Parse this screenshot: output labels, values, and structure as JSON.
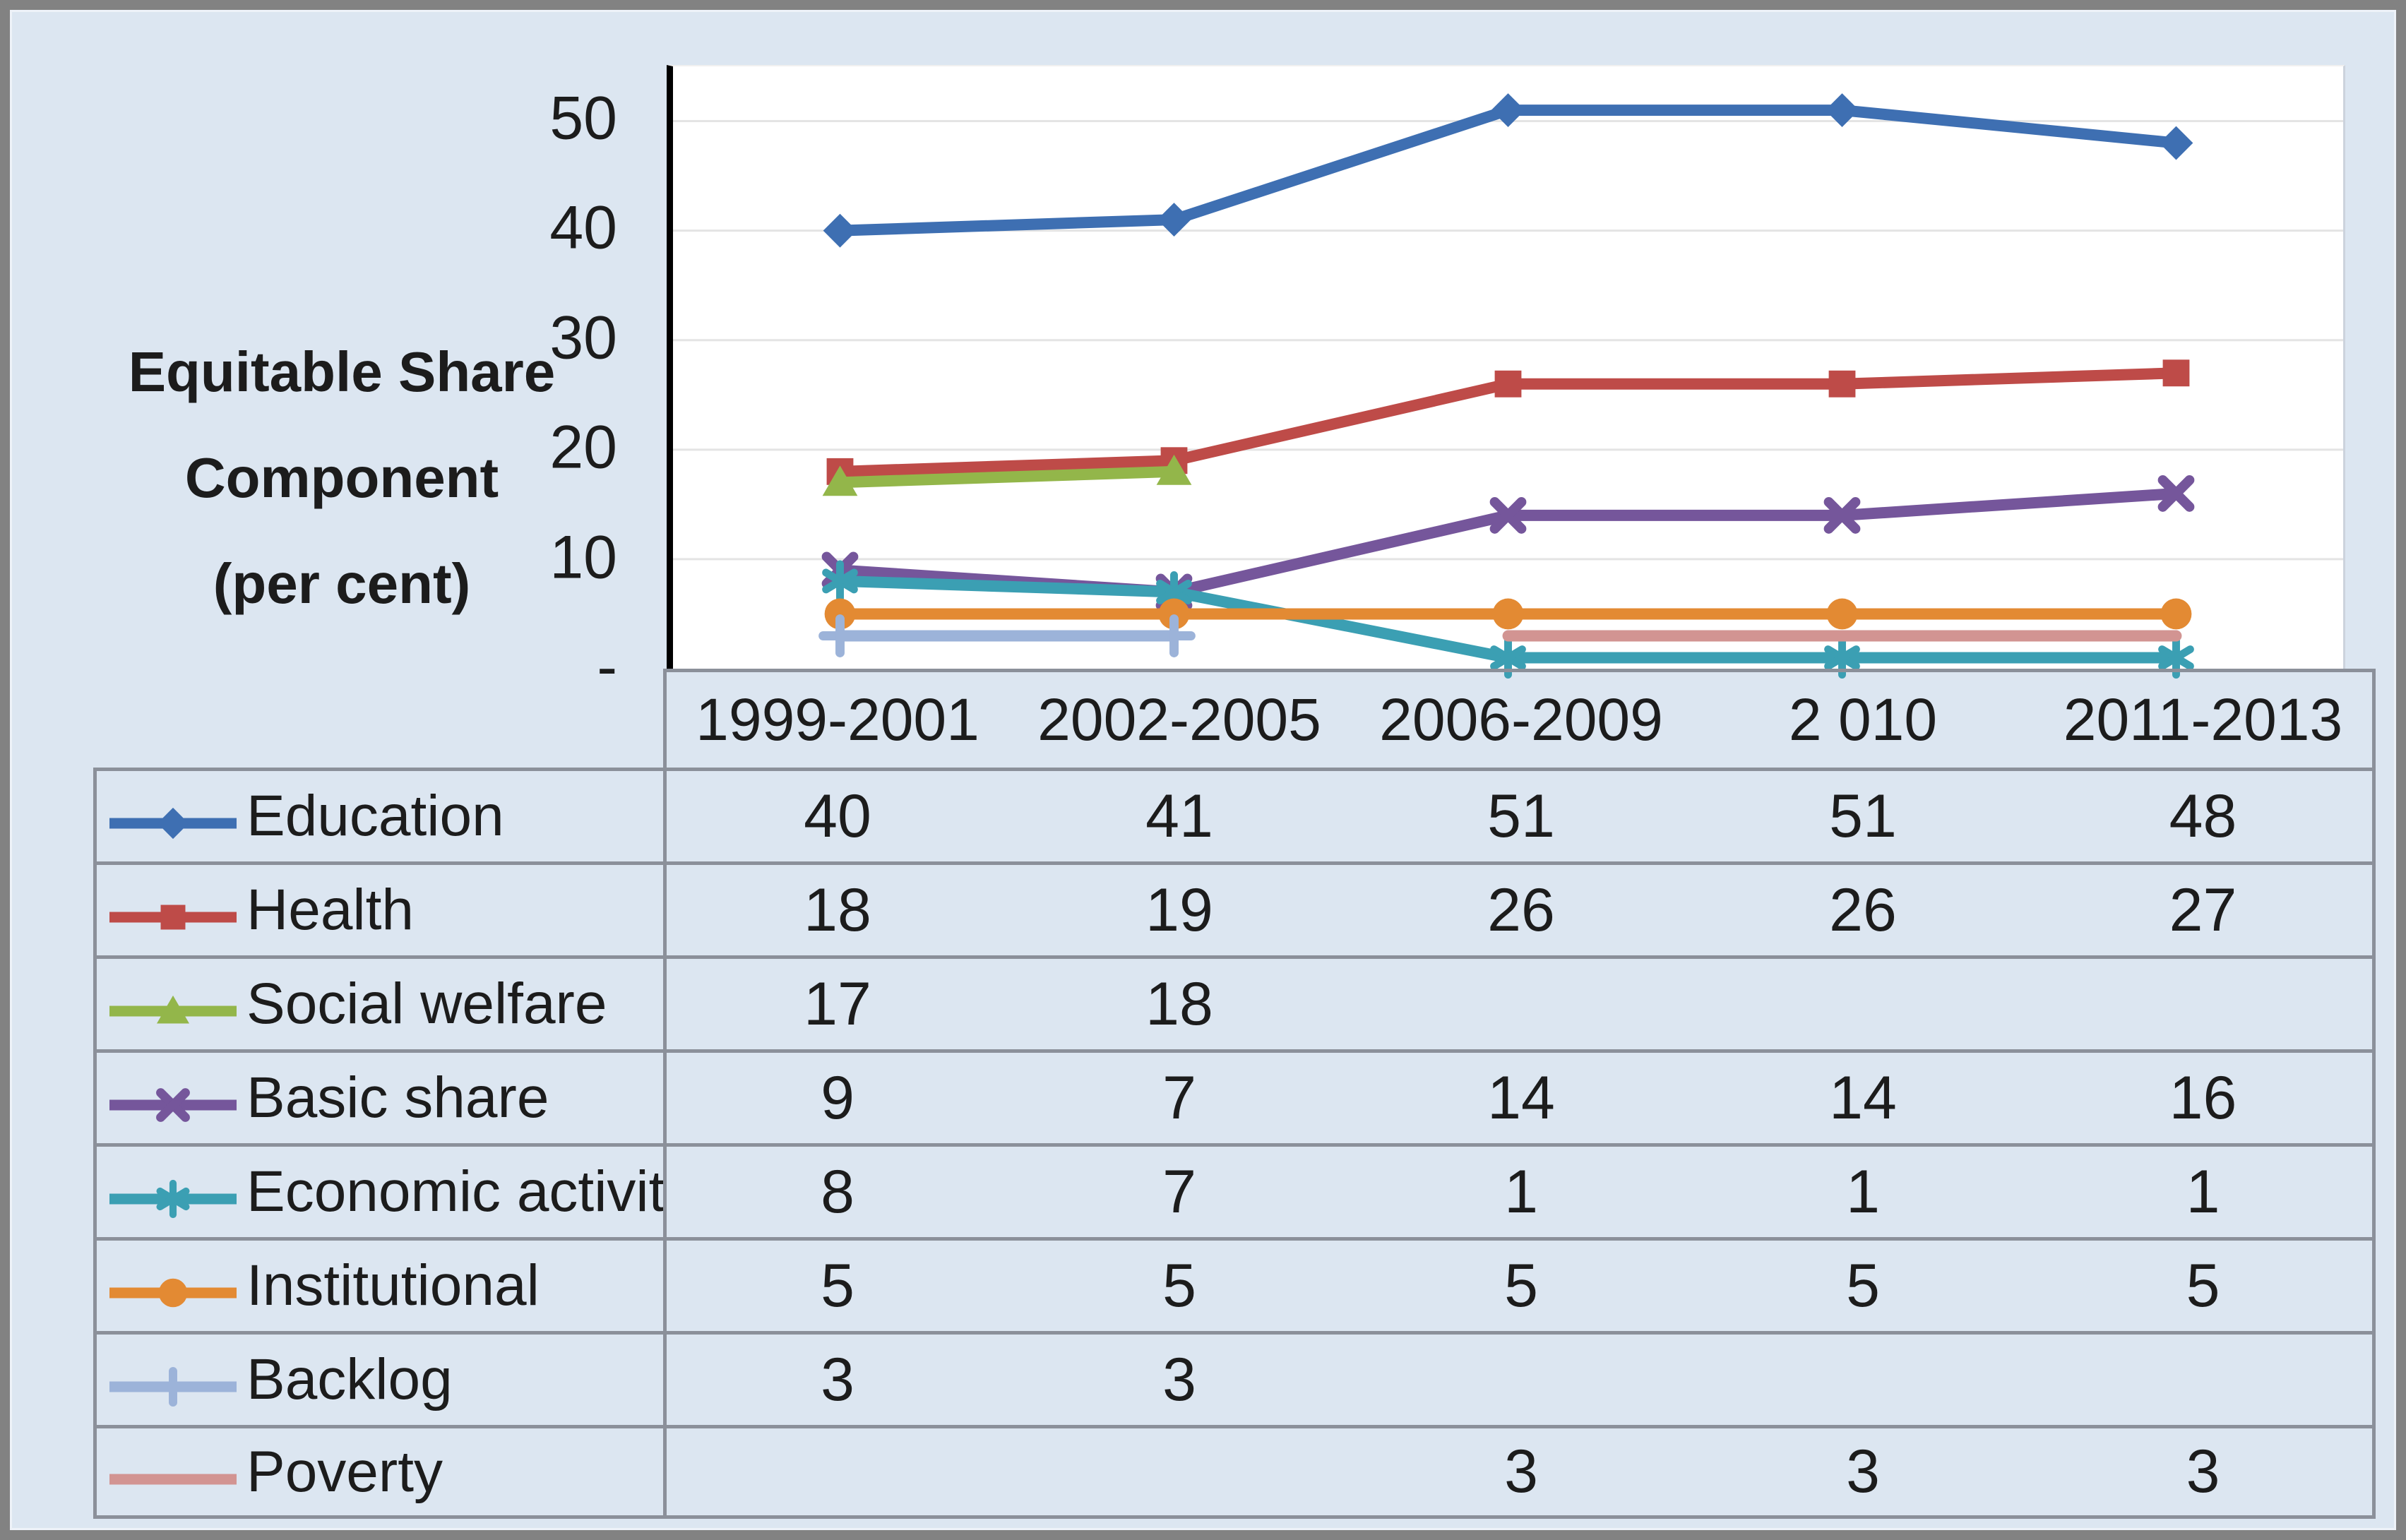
{
  "style": {
    "background": "#dce6f1",
    "frame_border": "#828282",
    "table_border": "#8b909a",
    "grid_line": "#e4e4e4",
    "axis_line": "#000000",
    "plot_background": "#ffffff",
    "text": "#1c1c1c"
  },
  "axis_title": {
    "lines": [
      "Equitable Share",
      "Component",
      "(per cent)"
    ]
  },
  "y_ticks": [
    {
      "label": "50",
      "value": 50
    },
    {
      "label": "40",
      "value": 40
    },
    {
      "label": "30",
      "value": 30
    },
    {
      "label": "20",
      "value": 20
    },
    {
      "label": "10",
      "value": 10
    },
    {
      "label": "-",
      "value": 0
    }
  ],
  "chart_data": {
    "type": "line",
    "title": "",
    "xlabel": "",
    "ylabel": "Equitable Share Component (per cent)",
    "ylim": [
      0,
      55
    ],
    "grid_values": [
      10,
      20,
      30,
      40,
      50
    ],
    "grid": true,
    "legend_position": "table-left-column",
    "categories": [
      "1999-2001",
      "2002-2005",
      "2006-2009",
      "2 010",
      "2011-2013"
    ],
    "series": [
      {
        "name": "Education",
        "color": "#3E6FB2",
        "marker": "diamond",
        "values": [
          40,
          41,
          51,
          51,
          48
        ]
      },
      {
        "name": "Health",
        "color": "#BE4B48",
        "marker": "square",
        "values": [
          18,
          19,
          26,
          26,
          27
        ]
      },
      {
        "name": "Social welfare",
        "color": "#93B64A",
        "marker": "triangle",
        "values": [
          17,
          18,
          null,
          null,
          null
        ]
      },
      {
        "name": "Basic share",
        "color": "#75569B",
        "marker": "x",
        "values": [
          9,
          7,
          14,
          14,
          16
        ]
      },
      {
        "name": "Economic activity",
        "color": "#3B9FB3",
        "marker": "asterisk",
        "values": [
          8,
          7,
          1,
          1,
          1
        ]
      },
      {
        "name": "Institutional",
        "color": "#E38A33",
        "marker": "circle",
        "values": [
          5,
          5,
          5,
          5,
          5
        ]
      },
      {
        "name": "Backlog",
        "color": "#9CB3D9",
        "marker": "plus",
        "values": [
          3,
          3,
          null,
          null,
          null
        ]
      },
      {
        "name": "Poverty",
        "color": "#D29492",
        "marker": "none",
        "values": [
          null,
          null,
          3,
          3,
          3
        ]
      }
    ]
  }
}
